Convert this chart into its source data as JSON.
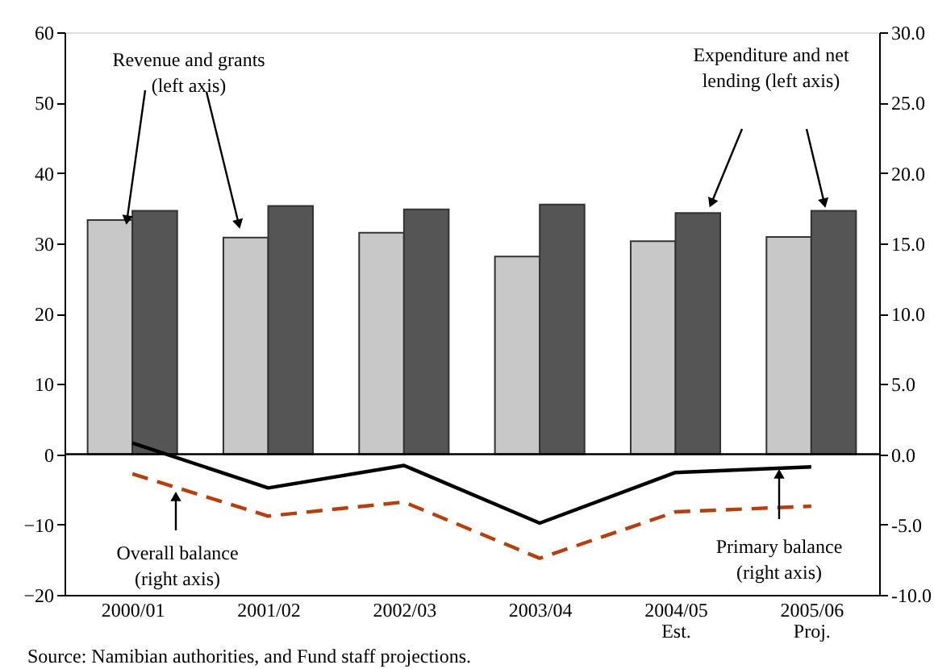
{
  "chart_data": {
    "type": "bar",
    "categories": [
      "2000/01",
      "2001/02",
      "2002/03",
      "2003/04",
      "2004/05\nEst.",
      "2005/06\nProj."
    ],
    "series": [
      {
        "color": "#c8c8c8",
        "values": [
          33.3,
          30.8,
          31.5,
          28.1,
          30.3,
          30.9
        ]
      },
      {
        "color": "#555555",
        "values": [
          34.6,
          35.3,
          34.8,
          35.5,
          34.3,
          34.6
        ]
      },
      {
        "type": "line",
        "axis": "y2",
        "color": "#000000",
        "line_style": "solid",
        "values": [
          0.8,
          -2.4,
          -0.8,
          -4.9,
          -1.3,
          -0.9
        ]
      },
      {
        "type": "line",
        "axis": "y2",
        "color": "#b5400f",
        "line_style": "dashed",
        "values": [
          -1.4,
          -4.4,
          -3.4,
          -7.4,
          -4.1,
          -3.7
        ]
      }
    ],
    "ylim": [
      -20,
      60
    ],
    "yticks": [
      -20,
      -10,
      0,
      10,
      20,
      30,
      40,
      50,
      60
    ],
    "y2lim": [
      -10,
      30
    ],
    "y2ticks": [
      {
        "value": -10,
        "label": "-10.0"
      },
      {
        "value": -5,
        "label": "-5.0"
      },
      {
        "value": 0,
        "label": "0.0"
      },
      {
        "value": 5,
        "label": "5.0"
      },
      {
        "value": 10,
        "label": "10.0"
      },
      {
        "value": 15,
        "label": "15.0"
      },
      {
        "value": 20,
        "label": "20.0"
      },
      {
        "value": 25,
        "label": "25.0"
      },
      {
        "value": 30,
        "label": "30.0"
      }
    ],
    "ref_lines": [
      {
        "axis": "y",
        "value": 0,
        "color": "#000000"
      }
    ],
    "annotations": [
      {
        "text": "Revenue and grants\n(left axis)",
        "x": "2000/01",
        "y": 33.3
      },
      "Expenditure and net\nlending (left axis)",
      {
        "text": "Overall balance\n(right axis)",
        "y": -6.0
      },
      {
        "text": "Primary balance\n(right axis)",
        "y": -2.8
      },
      "Source: Namibian authorities, and Fund staff projections."
    ],
    "grid": false,
    "marker": "none"
  }
}
